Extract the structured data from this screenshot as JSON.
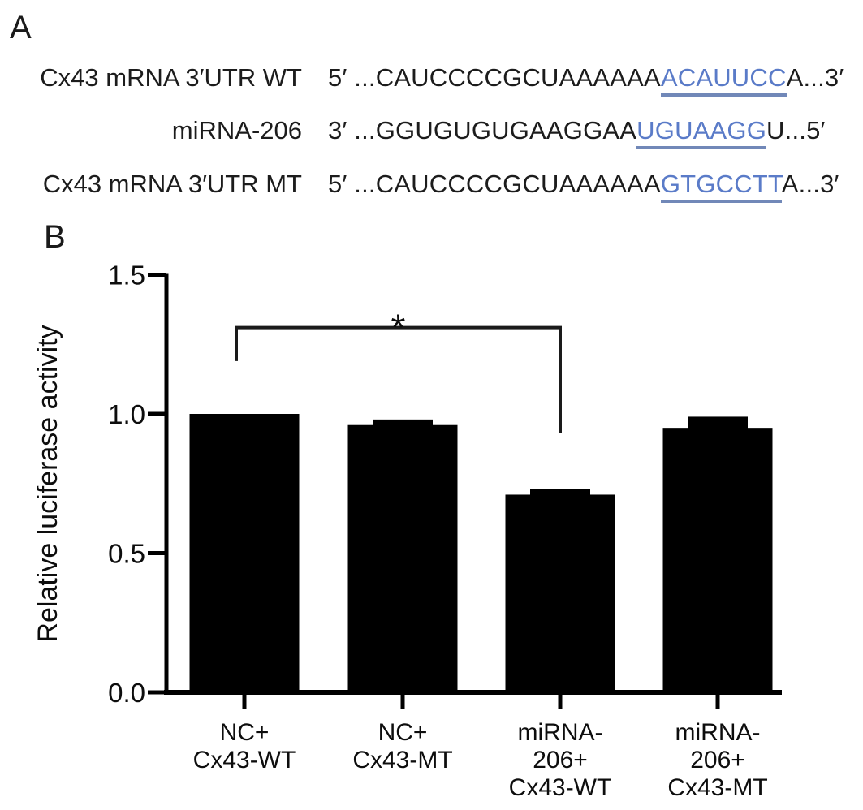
{
  "panel_a": {
    "label": "A",
    "seed_color": "#5a7bc8",
    "underline_color": "#7188b8",
    "rows": [
      {
        "label": "Cx43 mRNA 3′UTR WT",
        "prefix": "5′ ...CAUCCCCGCUAAAAAA",
        "seed": "ACAUUCC",
        "suffix": "A...3′"
      },
      {
        "label": "miRNA-206",
        "prefix": "3′ ...GGUGUGUGAAGGAA",
        "seed": "UGUAAGG",
        "suffix": "U...5′"
      },
      {
        "label": "Cx43 mRNA 3′UTR MT",
        "prefix": "5′ ...CAUCCCCGCUAAAAAA",
        "seed": "GTGCCTT",
        "suffix": "A...3′"
      }
    ]
  },
  "panel_b": {
    "label": "B"
  },
  "chart_data": {
    "type": "bar",
    "title": "",
    "xlabel": "",
    "ylabel": "Relative luciferase activity",
    "categories": [
      "NC+\nCx43-WT",
      "NC+\nCx43-MT",
      "miRNA-\n206+\nCx43-WT",
      "miRNA-\n206+\nCx43-MT"
    ],
    "values": [
      1.0,
      0.96,
      0.71,
      0.95
    ],
    "errors_upper": [
      0,
      0.02,
      0.02,
      0.04
    ],
    "yticks": [
      0.0,
      0.5,
      1.0,
      1.5
    ],
    "ylim": [
      0,
      1.5
    ],
    "grid": false,
    "legend": false,
    "bar_color": "#000000",
    "significance": {
      "symbol": "*",
      "between": [
        "NC+ Cx43-WT",
        "miRNA-206+ Cx43-WT"
      ],
      "from_index": 0,
      "to_index": 2,
      "bracket_top": 1.31,
      "from_leg_bottom": 1.19,
      "to_leg_bottom": 0.93
    }
  }
}
